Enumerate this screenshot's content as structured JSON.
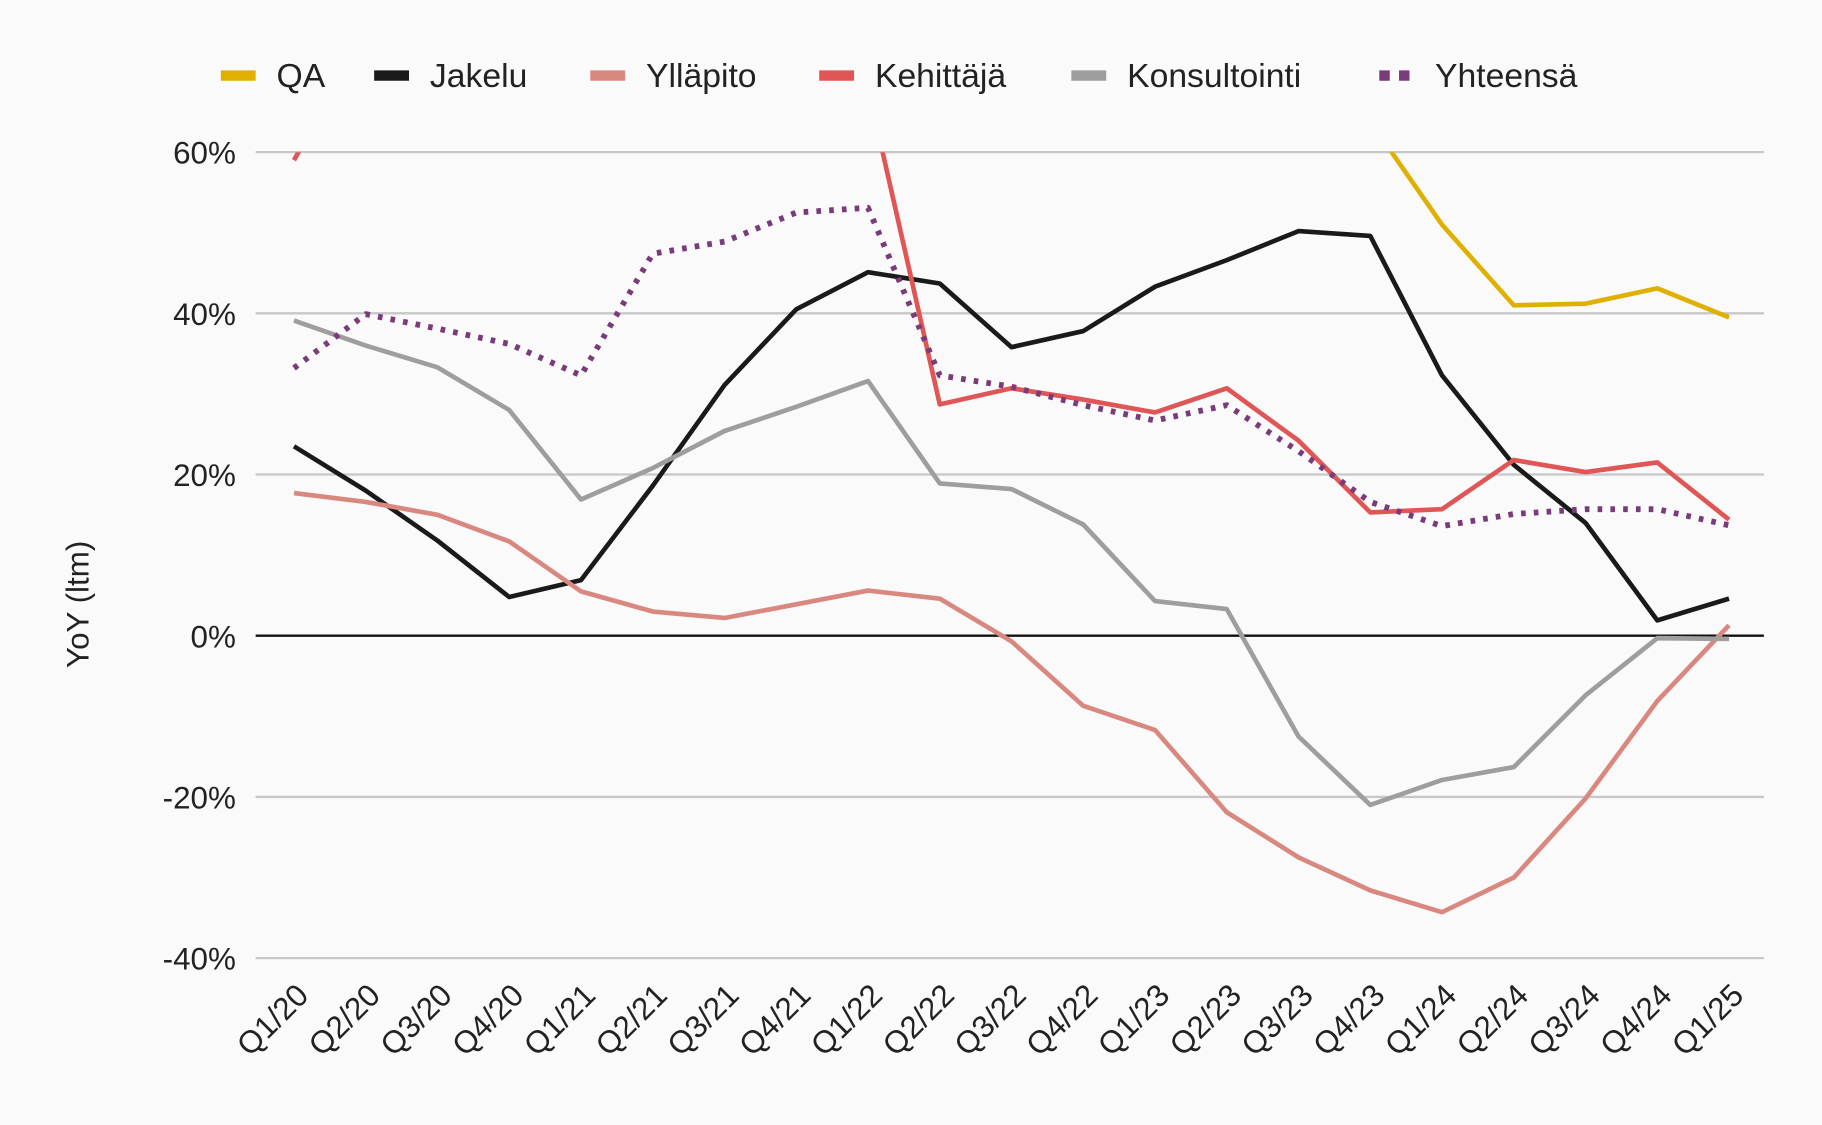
{
  "chart_data": {
    "type": "line",
    "title": "",
    "xlabel": "",
    "ylabel": "YoY (ltm)",
    "ylim": [
      -40,
      60
    ],
    "yticks": [
      "60%",
      "40%",
      "20%",
      "0%",
      "-20%",
      "-40%"
    ],
    "ytick_values": [
      60,
      40,
      20,
      0,
      -20,
      -40
    ],
    "grid": true,
    "legend_position": "top",
    "categories": [
      "Q1/20",
      "Q2/20",
      "Q3/20",
      "Q4/20",
      "Q1/21",
      "Q2/21",
      "Q3/21",
      "Q4/21",
      "Q1/22",
      "Q2/22",
      "Q3/22",
      "Q4/22",
      "Q1/23",
      "Q2/23",
      "Q3/23",
      "Q4/23",
      "Q1/24",
      "Q2/24",
      "Q3/24",
      "Q4/24",
      "Q1/25"
    ],
    "series": [
      {
        "name": "QA",
        "color": "#e0b000",
        "style": "solid",
        "values": [
          null,
          null,
          null,
          null,
          null,
          null,
          null,
          null,
          null,
          null,
          null,
          null,
          null,
          null,
          null,
          63.8,
          51,
          41,
          41.2,
          43.1,
          39.5
        ]
      },
      {
        "name": "Jakelu",
        "color": "#1a1a1a",
        "style": "solid",
        "values": [
          23.5,
          18,
          11.8,
          4.8,
          6.9,
          18.6,
          31.1,
          40.5,
          45.1,
          43.7,
          35.8,
          37.8,
          43.3,
          46.6,
          50.2,
          49.6,
          32.3,
          21.2,
          14,
          1.9,
          4.6
        ]
      },
      {
        "name": "Ylläpito",
        "color": "#d98880",
        "style": "solid",
        "values": [
          17.7,
          16.6,
          15,
          11.7,
          5.5,
          3,
          2.2,
          3.9,
          5.6,
          4.6,
          -0.7,
          -8.7,
          -11.7,
          -21.9,
          -27.5,
          -31.6,
          -34.3,
          -30,
          -20.2,
          -8.1,
          1.3
        ]
      },
      {
        "name": "Kehittäjä",
        "color": "#e05555",
        "style": "solid",
        "values": [
          59,
          75,
          null,
          null,
          null,
          null,
          null,
          null,
          68,
          28.7,
          30.7,
          29.3,
          27.7,
          30.7,
          24.2,
          15.3,
          15.7,
          21.8,
          20.3,
          21.5,
          14.4
        ]
      },
      {
        "name": "Konsultointi",
        "color": "#9e9e9e",
        "style": "solid",
        "values": [
          39.1,
          36,
          33.3,
          28,
          16.9,
          20.8,
          25.4,
          28.4,
          31.6,
          18.9,
          18.2,
          13.8,
          4.3,
          3.3,
          -12.5,
          -21,
          -17.9,
          -16.3,
          -7.4,
          -0.3,
          -0.4
        ]
      },
      {
        "name": "Yhteensä",
        "color": "#7a3b7a",
        "style": "dotted",
        "values": [
          33.2,
          39.9,
          38.1,
          36.2,
          32.3,
          47.4,
          48.9,
          52.5,
          53.1,
          32.3,
          30.9,
          28.6,
          26.7,
          28.6,
          22.9,
          16.6,
          13.6,
          15.1,
          15.7,
          15.7,
          13.7
        ]
      }
    ]
  }
}
